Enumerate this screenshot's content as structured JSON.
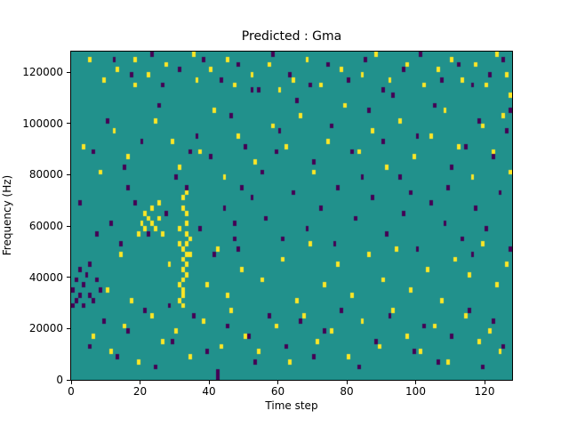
{
  "figure": {
    "background": "#ffffff"
  },
  "chart_data": {
    "type": "heatmap",
    "title": "Predicted : Gma",
    "xlabel": "Time step",
    "ylabel": "Frequency (Hz)",
    "xlim": [
      0,
      128
    ],
    "ylim": [
      0,
      128000
    ],
    "xticks": [
      0,
      20,
      40,
      60,
      80,
      100,
      120
    ],
    "yticks": [
      0,
      20000,
      40000,
      60000,
      80000,
      100000,
      120000
    ],
    "grid": {
      "cols": 128,
      "rows": 64,
      "freq_bin_hz": 2000
    },
    "legend": "none",
    "colors": {
      "background": "#21918c",
      "high": "#fde725",
      "low": "#440154",
      "spine": "#000000"
    },
    "cells_high": [
      [
        31,
        15
      ],
      [
        31,
        18
      ],
      [
        32,
        14
      ],
      [
        32,
        16
      ],
      [
        32,
        17
      ],
      [
        32,
        19
      ],
      [
        32,
        21
      ],
      [
        32,
        23
      ],
      [
        32,
        25
      ],
      [
        33,
        20
      ],
      [
        33,
        22
      ],
      [
        33,
        24
      ],
      [
        33,
        26
      ],
      [
        33,
        28
      ],
      [
        33,
        30
      ],
      [
        33,
        32
      ],
      [
        32,
        33
      ],
      [
        32,
        35
      ],
      [
        33,
        36
      ],
      [
        34,
        27
      ],
      [
        34,
        24
      ],
      [
        31,
        29
      ],
      [
        31,
        26
      ],
      [
        19,
        28
      ],
      [
        20,
        30
      ],
      [
        21,
        29
      ],
      [
        21,
        32
      ],
      [
        22,
        31
      ],
      [
        23,
        30
      ],
      [
        23,
        33
      ],
      [
        24,
        29
      ],
      [
        25,
        31
      ],
      [
        25,
        34
      ],
      [
        26,
        28
      ],
      [
        5,
        62
      ],
      [
        9,
        58
      ],
      [
        13,
        60
      ],
      [
        18,
        57
      ],
      [
        18,
        62
      ],
      [
        22,
        59
      ],
      [
        27,
        61
      ],
      [
        35,
        63
      ],
      [
        36,
        58
      ],
      [
        40,
        60
      ],
      [
        45,
        62
      ],
      [
        47,
        57
      ],
      [
        52,
        59
      ],
      [
        57,
        61
      ],
      [
        60,
        56
      ],
      [
        64,
        58
      ],
      [
        68,
        62
      ],
      [
        72,
        57
      ],
      [
        78,
        60
      ],
      [
        84,
        59
      ],
      [
        88,
        63
      ],
      [
        92,
        58
      ],
      [
        97,
        61
      ],
      [
        102,
        57
      ],
      [
        106,
        60
      ],
      [
        110,
        62
      ],
      [
        113,
        58
      ],
      [
        117,
        61
      ],
      [
        120,
        57
      ],
      [
        123,
        63
      ],
      [
        126,
        59
      ],
      [
        127,
        55
      ],
      [
        3,
        45
      ],
      [
        8,
        40
      ],
      [
        12,
        48
      ],
      [
        16,
        43
      ],
      [
        24,
        50
      ],
      [
        29,
        46
      ],
      [
        31,
        41
      ],
      [
        37,
        44
      ],
      [
        41,
        52
      ],
      [
        44,
        39
      ],
      [
        48,
        47
      ],
      [
        53,
        42
      ],
      [
        58,
        49
      ],
      [
        62,
        45
      ],
      [
        66,
        51
      ],
      [
        70,
        40
      ],
      [
        74,
        46
      ],
      [
        79,
        53
      ],
      [
        83,
        44
      ],
      [
        87,
        48
      ],
      [
        91,
        41
      ],
      [
        95,
        50
      ],
      [
        99,
        43
      ],
      [
        104,
        47
      ],
      [
        108,
        52
      ],
      [
        112,
        45
      ],
      [
        116,
        39
      ],
      [
        119,
        49
      ],
      [
        122,
        44
      ],
      [
        125,
        51
      ],
      [
        6,
        8
      ],
      [
        11,
        5
      ],
      [
        15,
        10
      ],
      [
        19,
        3
      ],
      [
        23,
        12
      ],
      [
        26,
        7
      ],
      [
        30,
        9
      ],
      [
        34,
        4
      ],
      [
        38,
        11
      ],
      [
        43,
        6
      ],
      [
        46,
        13
      ],
      [
        50,
        8
      ],
      [
        54,
        5
      ],
      [
        59,
        10
      ],
      [
        63,
        3
      ],
      [
        67,
        12
      ],
      [
        71,
        7
      ],
      [
        75,
        9
      ],
      [
        80,
        4
      ],
      [
        84,
        11
      ],
      [
        89,
        6
      ],
      [
        93,
        13
      ],
      [
        97,
        8
      ],
      [
        101,
        5
      ],
      [
        105,
        10
      ],
      [
        109,
        3
      ],
      [
        114,
        12
      ],
      [
        118,
        7
      ],
      [
        121,
        9
      ],
      [
        124,
        5
      ],
      [
        4,
        20
      ],
      [
        10,
        17
      ],
      [
        14,
        24
      ],
      [
        17,
        15
      ],
      [
        28,
        22
      ],
      [
        39,
        18
      ],
      [
        42,
        25
      ],
      [
        45,
        16
      ],
      [
        49,
        21
      ],
      [
        55,
        19
      ],
      [
        61,
        23
      ],
      [
        65,
        15
      ],
      [
        69,
        26
      ],
      [
        73,
        18
      ],
      [
        77,
        22
      ],
      [
        81,
        16
      ],
      [
        86,
        24
      ],
      [
        90,
        19
      ],
      [
        94,
        25
      ],
      [
        98,
        17
      ],
      [
        103,
        21
      ],
      [
        107,
        15
      ],
      [
        111,
        23
      ],
      [
        115,
        20
      ],
      [
        119,
        26
      ],
      [
        123,
        18
      ],
      [
        126,
        22
      ],
      [
        127,
        40
      ]
    ],
    "cells_low": [
      [
        0,
        14
      ],
      [
        0,
        17
      ],
      [
        1,
        15
      ],
      [
        1,
        19
      ],
      [
        2,
        16
      ],
      [
        2,
        21
      ],
      [
        3,
        14
      ],
      [
        3,
        18
      ],
      [
        4,
        20
      ],
      [
        5,
        16
      ],
      [
        5,
        22
      ],
      [
        6,
        15
      ],
      [
        7,
        19
      ],
      [
        8,
        17
      ],
      [
        12,
        62
      ],
      [
        17,
        59
      ],
      [
        23,
        63
      ],
      [
        26,
        57
      ],
      [
        31,
        60
      ],
      [
        38,
        62
      ],
      [
        43,
        58
      ],
      [
        48,
        61
      ],
      [
        54,
        56
      ],
      [
        58,
        63
      ],
      [
        63,
        59
      ],
      [
        69,
        57
      ],
      [
        74,
        61
      ],
      [
        80,
        58
      ],
      [
        85,
        62
      ],
      [
        90,
        56
      ],
      [
        96,
        60
      ],
      [
        101,
        63
      ],
      [
        107,
        58
      ],
      [
        112,
        61
      ],
      [
        116,
        57
      ],
      [
        121,
        59
      ],
      [
        125,
        62
      ],
      [
        6,
        44
      ],
      [
        10,
        50
      ],
      [
        15,
        41
      ],
      [
        20,
        46
      ],
      [
        25,
        53
      ],
      [
        30,
        39
      ],
      [
        36,
        47
      ],
      [
        40,
        43
      ],
      [
        46,
        51
      ],
      [
        50,
        45
      ],
      [
        55,
        40
      ],
      [
        60,
        48
      ],
      [
        65,
        54
      ],
      [
        70,
        42
      ],
      [
        75,
        49
      ],
      [
        81,
        44
      ],
      [
        86,
        52
      ],
      [
        90,
        46
      ],
      [
        95,
        39
      ],
      [
        100,
        47
      ],
      [
        105,
        53
      ],
      [
        110,
        41
      ],
      [
        114,
        45
      ],
      [
        118,
        50
      ],
      [
        122,
        43
      ],
      [
        126,
        48
      ],
      [
        11,
        30
      ],
      [
        14,
        26
      ],
      [
        18,
        34
      ],
      [
        22,
        28
      ],
      [
        27,
        32
      ],
      [
        33,
        37
      ],
      [
        37,
        29
      ],
      [
        41,
        24
      ],
      [
        44,
        33
      ],
      [
        47,
        27
      ],
      [
        47,
        30
      ],
      [
        48,
        25
      ],
      [
        52,
        35
      ],
      [
        56,
        31
      ],
      [
        61,
        27
      ],
      [
        64,
        36
      ],
      [
        68,
        29
      ],
      [
        72,
        33
      ],
      [
        76,
        26
      ],
      [
        82,
        31
      ],
      [
        87,
        35
      ],
      [
        91,
        28
      ],
      [
        96,
        32
      ],
      [
        100,
        25
      ],
      [
        104,
        34
      ],
      [
        108,
        30
      ],
      [
        113,
        27
      ],
      [
        117,
        33
      ],
      [
        120,
        29
      ],
      [
        124,
        36
      ],
      [
        127,
        25
      ],
      [
        5,
        6
      ],
      [
        9,
        11
      ],
      [
        13,
        4
      ],
      [
        16,
        9
      ],
      [
        21,
        13
      ],
      [
        24,
        2
      ],
      [
        29,
        7
      ],
      [
        35,
        12
      ],
      [
        39,
        5
      ],
      [
        42,
        1
      ],
      [
        42,
        0
      ],
      [
        45,
        10
      ],
      [
        51,
        8
      ],
      [
        53,
        3
      ],
      [
        57,
        12
      ],
      [
        62,
        6
      ],
      [
        66,
        11
      ],
      [
        70,
        4
      ],
      [
        73,
        9
      ],
      [
        78,
        13
      ],
      [
        83,
        2
      ],
      [
        88,
        7
      ],
      [
        92,
        12
      ],
      [
        99,
        5
      ],
      [
        102,
        10
      ],
      [
        106,
        3
      ],
      [
        110,
        8
      ],
      [
        115,
        13
      ],
      [
        119,
        2
      ],
      [
        122,
        11
      ],
      [
        125,
        6
      ],
      [
        34,
        44
      ],
      [
        52,
        56
      ],
      [
        59,
        44
      ],
      [
        77,
        37
      ],
      [
        84,
        39
      ],
      [
        93,
        55
      ],
      [
        98,
        36
      ],
      [
        109,
        37
      ],
      [
        116,
        24
      ],
      [
        127,
        52
      ],
      [
        2,
        34
      ],
      [
        7,
        28
      ],
      [
        16,
        37
      ],
      [
        28,
        14
      ],
      [
        49,
        37
      ]
    ]
  }
}
